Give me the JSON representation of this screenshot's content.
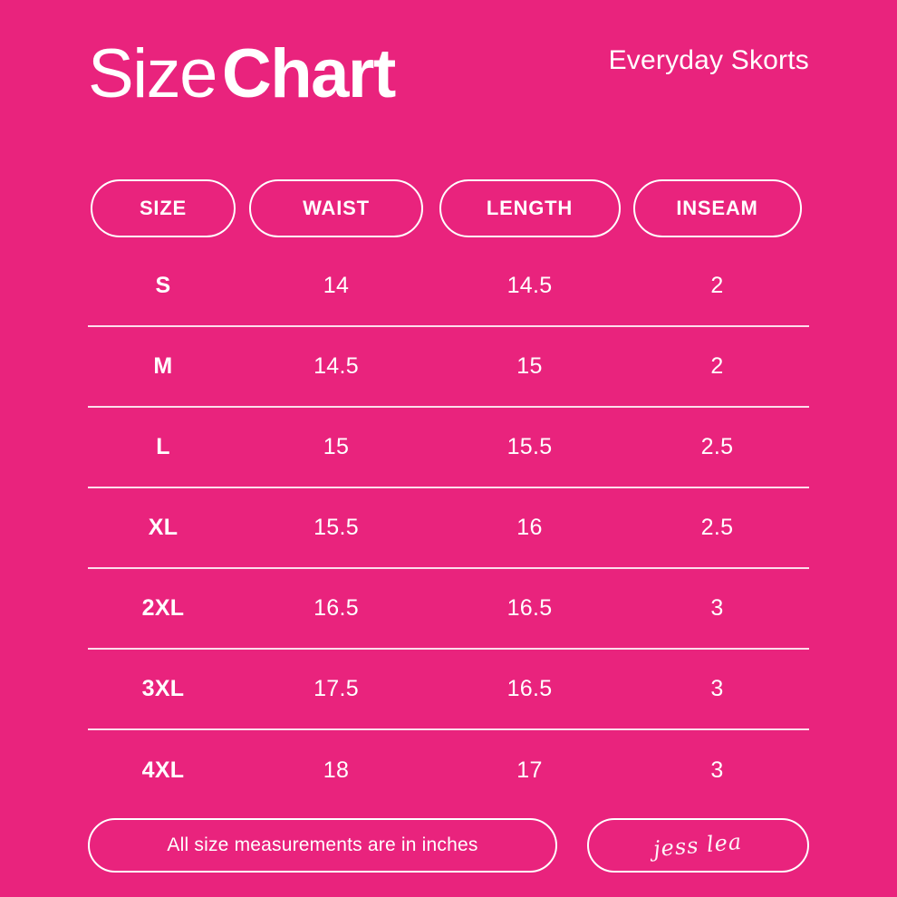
{
  "colors": {
    "bg": "#E9237D",
    "fg": "#FFFFFF",
    "divider": "rgba(255,255,255,0.85)"
  },
  "header": {
    "title_regular": "Size",
    "title_bold": "Chart",
    "product": "Everyday Skorts"
  },
  "chart_data": {
    "type": "table",
    "title": "Size Chart",
    "subtitle": "Everyday Skorts",
    "columns": [
      "SIZE",
      "WAIST",
      "LENGTH",
      "INSEAM"
    ],
    "rows": [
      [
        "S",
        "14",
        "14.5",
        "2"
      ],
      [
        "M",
        "14.5",
        "15",
        "2"
      ],
      [
        "L",
        "15",
        "15.5",
        "2.5"
      ],
      [
        "XL",
        "15.5",
        "16",
        "2.5"
      ],
      [
        "2XL",
        "16.5",
        "16.5",
        "3"
      ],
      [
        "3XL",
        "17.5",
        "16.5",
        "3"
      ],
      [
        "4XL",
        "18",
        "17",
        "3"
      ]
    ],
    "units": "inches",
    "note": "All size measurements are in inches"
  },
  "footer": {
    "note": "All size measurements are in inches",
    "signature": "jess lea"
  }
}
